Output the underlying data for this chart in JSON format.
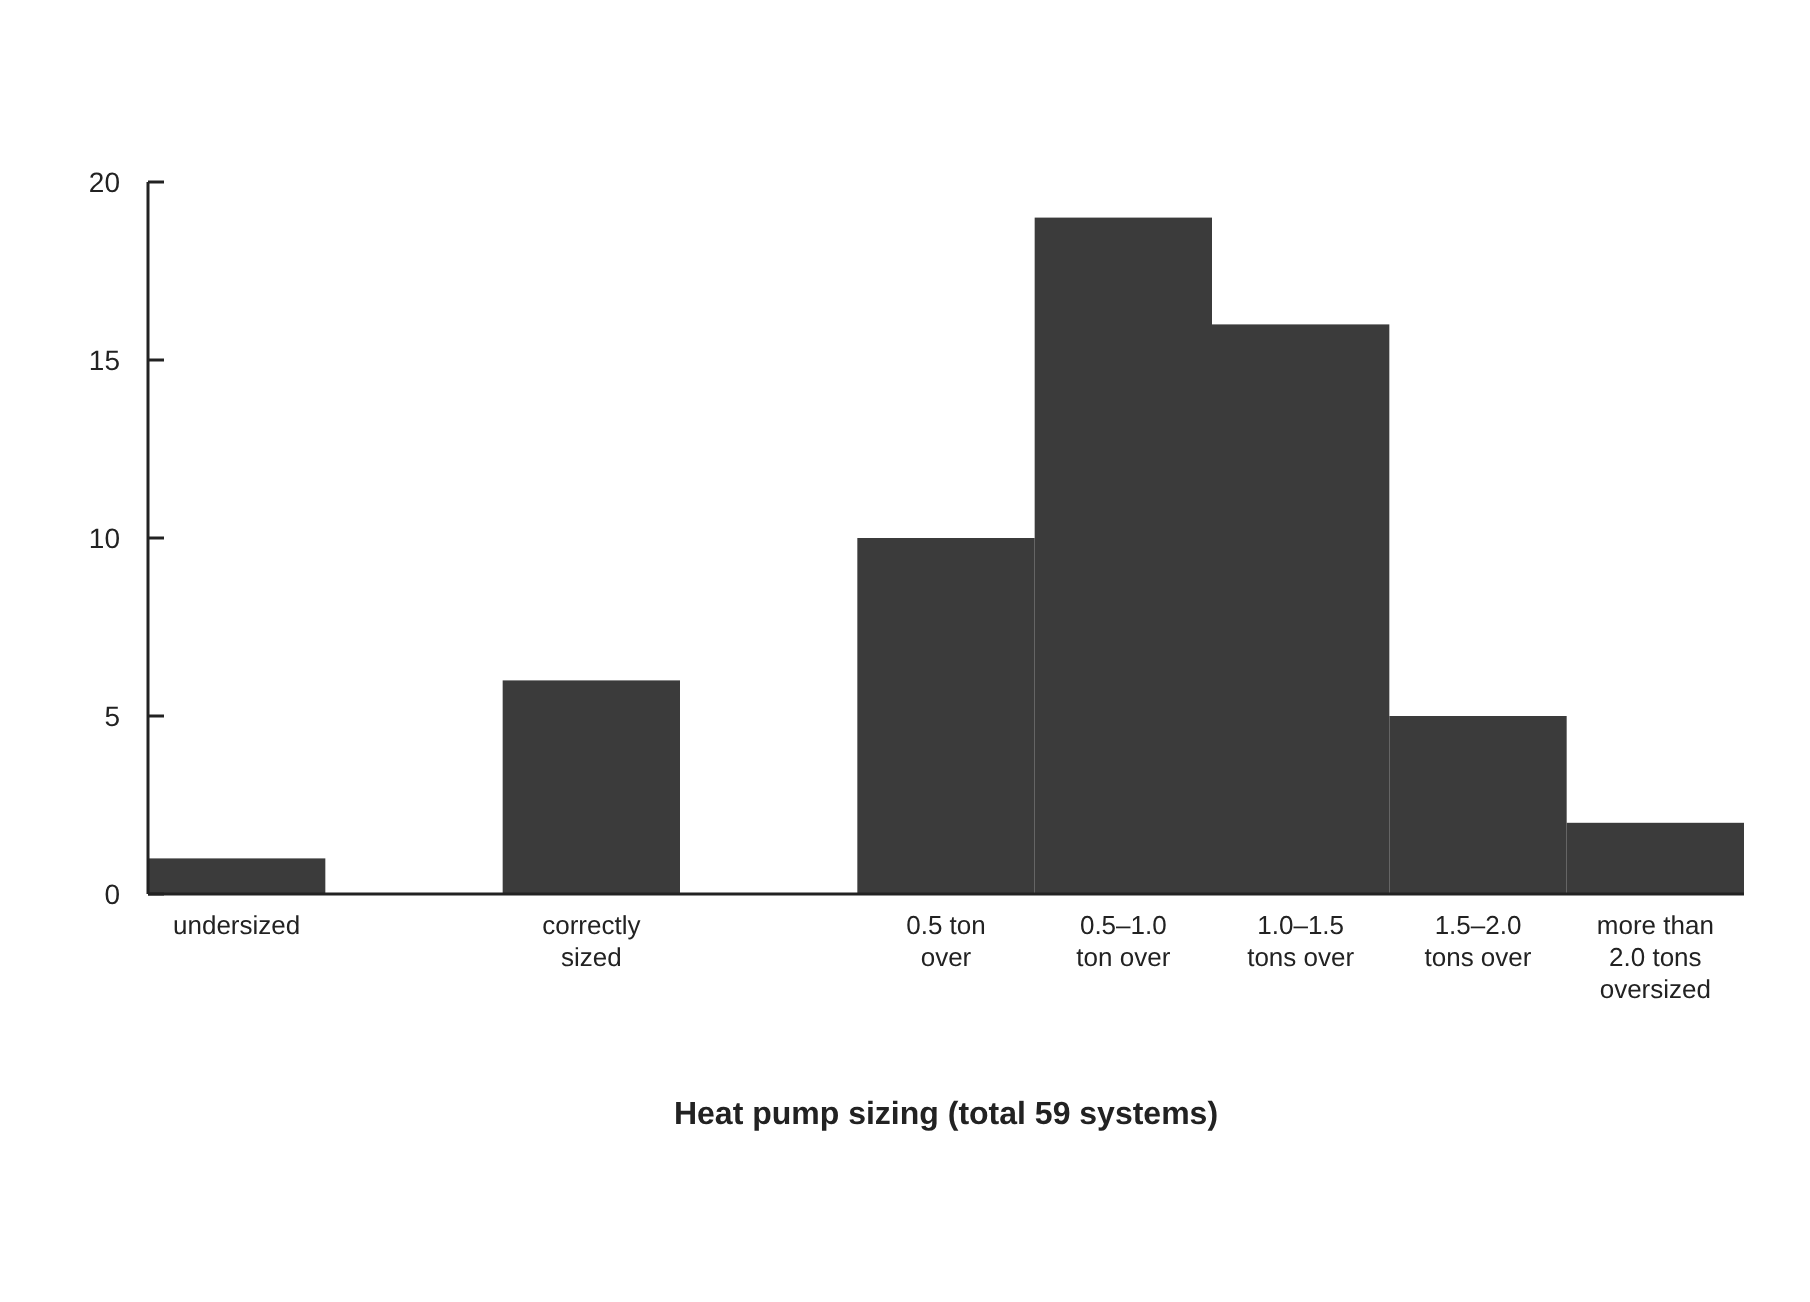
{
  "chart_data": {
    "type": "bar",
    "xlabel": "Heat pump sizing (total 59 systems)",
    "categories": [
      "undersized",
      null,
      "correctly sized",
      null,
      "0.5 ton over",
      "0.5–1.0 ton over",
      "1.0–1.5 tons over",
      "1.5–2.0 tons over",
      "more than 2.0 tons oversized"
    ],
    "values": [
      1,
      null,
      6,
      null,
      10,
      19,
      16,
      5,
      2
    ],
    "color": "#3b3b3b",
    "ylim": [
      0,
      20
    ],
    "yticks": [
      0,
      5,
      10,
      15,
      20
    ],
    "grid": false
  }
}
